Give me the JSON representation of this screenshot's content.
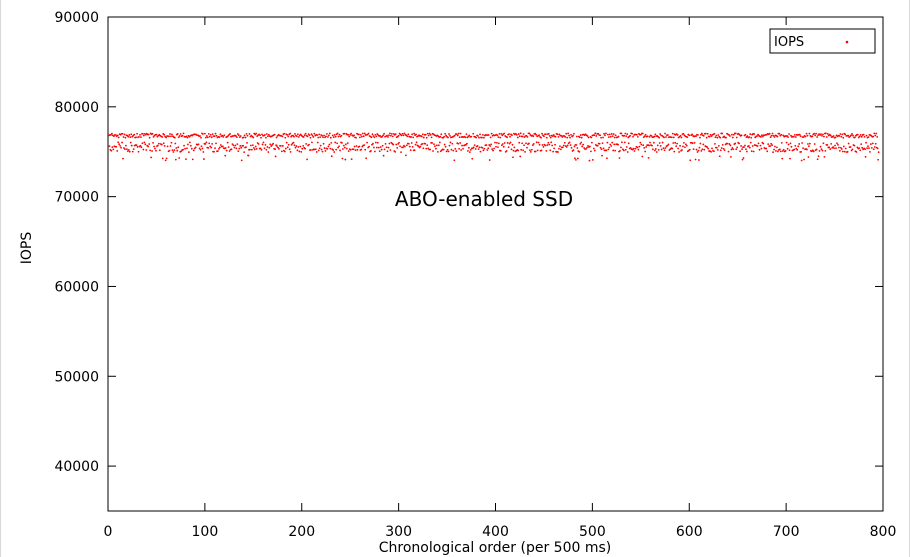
{
  "chart_data": {
    "type": "scatter",
    "title": "",
    "xlabel": "Chronological order (per 500 ms)",
    "ylabel": "IOPS",
    "xlim": [
      0,
      800
    ],
    "ylim": [
      35000,
      90000
    ],
    "x_ticks": [
      0,
      100,
      200,
      300,
      400,
      500,
      600,
      700,
      800
    ],
    "y_ticks": [
      40000,
      50000,
      60000,
      70000,
      80000,
      90000
    ],
    "grid": false,
    "legend_position": "top-right",
    "annotation": "ABO-enabled SSD",
    "series": [
      {
        "name": "IOPS",
        "color": "#ff0000",
        "marker": "dot",
        "n_points": 1590,
        "x_range": [
          1,
          795
        ],
        "x_step": 0.5,
        "bands": [
          {
            "center": 76800,
            "spread": 250
          },
          {
            "center": 75500,
            "spread": 550
          }
        ],
        "y_min": 74000,
        "y_max": 77300
      }
    ]
  }
}
